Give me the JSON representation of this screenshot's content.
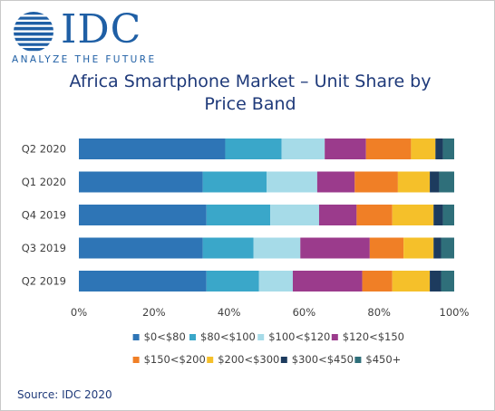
{
  "brand": {
    "name": "IDC",
    "tagline": "ANALYZE THE FUTURE",
    "color": "#1f5fa5"
  },
  "source": "Source: IDC 2020",
  "chart_data": {
    "type": "bar",
    "orientation": "horizontal",
    "stacked": true,
    "title": "Africa Smartphone Market – Unit Share by Price Band",
    "title_lines": [
      "Africa Smartphone Market – Unit Share by",
      "Price Band"
    ],
    "categories": [
      "Q2 2020",
      "Q1 2020",
      "Q4 2019",
      "Q3 2019",
      "Q2 2019"
    ],
    "xlim": [
      0,
      100
    ],
    "x_ticks": [
      "0%",
      "20%",
      "40%",
      "60%",
      "80%",
      "100%"
    ],
    "grid": false,
    "legend_position": "bottom",
    "series": [
      {
        "name": "$0<$80",
        "color": "#2e75b6",
        "values": [
          39,
          33,
          34,
          33,
          34
        ]
      },
      {
        "name": "$80<$100",
        "color": "#3aa7c9",
        "values": [
          15,
          17,
          17,
          13.5,
          14
        ]
      },
      {
        "name": "$100<$120",
        "color": "#a6dbe8",
        "values": [
          11.5,
          13.5,
          13,
          12.5,
          9
        ]
      },
      {
        "name": "$120<$150",
        "color": "#9b3b8c",
        "values": [
          11,
          10,
          10,
          18.5,
          18.5
        ]
      },
      {
        "name": "$150<$200",
        "color": "#f07f26",
        "values": [
          12,
          11.5,
          9.5,
          9,
          8
        ]
      },
      {
        "name": "$200<$300",
        "color": "#f5c02a",
        "values": [
          6.5,
          8.5,
          11,
          8,
          10
        ]
      },
      {
        "name": "$300<$450",
        "color": "#1d3b5e",
        "values": [
          2,
          2.5,
          2.5,
          2,
          3
        ]
      },
      {
        "name": "$450+",
        "color": "#2f6f7a",
        "values": [
          3,
          4,
          3,
          3.5,
          3.5
        ]
      }
    ]
  }
}
